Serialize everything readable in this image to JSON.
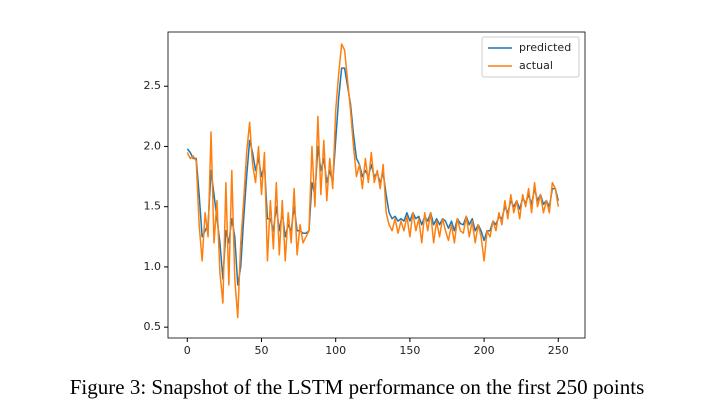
{
  "chart_data": {
    "type": "line",
    "caption": "Figure 3: Snapshot of the LSTM performance on the first 250 points",
    "x": [
      0,
      2,
      4,
      6,
      8,
      10,
      12,
      14,
      16,
      18,
      20,
      22,
      24,
      26,
      28,
      30,
      32,
      34,
      36,
      38,
      40,
      42,
      44,
      46,
      48,
      50,
      52,
      54,
      56,
      58,
      60,
      62,
      64,
      66,
      68,
      70,
      72,
      74,
      76,
      78,
      80,
      82,
      84,
      86,
      88,
      90,
      92,
      94,
      96,
      98,
      100,
      102,
      104,
      106,
      108,
      110,
      112,
      114,
      116,
      118,
      120,
      122,
      124,
      126,
      128,
      130,
      132,
      134,
      136,
      138,
      140,
      142,
      144,
      146,
      148,
      150,
      152,
      154,
      156,
      158,
      160,
      162,
      164,
      166,
      168,
      170,
      172,
      174,
      176,
      178,
      180,
      182,
      184,
      186,
      188,
      190,
      192,
      194,
      196,
      198,
      200,
      202,
      204,
      206,
      208,
      210,
      212,
      214,
      216,
      218,
      220,
      222,
      224,
      226,
      228,
      230,
      232,
      234,
      236,
      238,
      240,
      242,
      244,
      246,
      248,
      250
    ],
    "series": [
      {
        "name": "predicted",
        "color": "#1f77b4",
        "values": [
          1.98,
          1.95,
          1.9,
          1.9,
          1.6,
          1.25,
          1.3,
          1.35,
          1.8,
          1.6,
          1.4,
          1.2,
          0.9,
          1.3,
          1.2,
          1.4,
          1.25,
          0.85,
          1.0,
          1.4,
          1.75,
          2.05,
          1.95,
          1.8,
          1.9,
          1.75,
          1.85,
          1.4,
          1.4,
          1.3,
          1.5,
          1.3,
          1.45,
          1.25,
          1.35,
          1.3,
          1.5,
          1.3,
          1.3,
          1.28,
          1.28,
          1.3,
          1.7,
          1.6,
          2.0,
          1.8,
          1.9,
          1.7,
          1.8,
          1.7,
          2.05,
          2.4,
          2.65,
          2.65,
          2.5,
          2.35,
          2.1,
          1.9,
          1.85,
          1.75,
          1.8,
          1.75,
          1.85,
          1.75,
          1.78,
          1.7,
          1.78,
          1.6,
          1.45,
          1.4,
          1.42,
          1.38,
          1.4,
          1.38,
          1.45,
          1.38,
          1.45,
          1.4,
          1.42,
          1.35,
          1.42,
          1.38,
          1.45,
          1.35,
          1.4,
          1.35,
          1.4,
          1.38,
          1.32,
          1.38,
          1.3,
          1.4,
          1.36,
          1.35,
          1.42,
          1.35,
          1.4,
          1.3,
          1.35,
          1.3,
          1.22,
          1.3,
          1.3,
          1.38,
          1.35,
          1.42,
          1.4,
          1.5,
          1.45,
          1.55,
          1.5,
          1.55,
          1.48,
          1.57,
          1.53,
          1.6,
          1.52,
          1.65,
          1.55,
          1.6,
          1.52,
          1.55,
          1.5,
          1.65,
          1.65,
          1.55
        ]
      },
      {
        "name": "actual",
        "color": "#ff7f0e",
        "values": [
          1.95,
          1.9,
          1.92,
          1.88,
          1.35,
          1.05,
          1.45,
          1.25,
          2.12,
          1.2,
          1.55,
          0.95,
          0.7,
          1.7,
          0.85,
          1.8,
          0.9,
          0.58,
          1.2,
          1.55,
          1.95,
          2.2,
          1.85,
          1.7,
          2.0,
          1.6,
          1.95,
          1.05,
          1.55,
          1.15,
          1.7,
          1.1,
          1.55,
          1.05,
          1.45,
          1.2,
          1.65,
          1.1,
          1.35,
          1.2,
          1.25,
          1.3,
          2.0,
          1.5,
          2.25,
          1.6,
          2.05,
          1.55,
          1.9,
          1.65,
          2.3,
          2.6,
          2.85,
          2.8,
          2.55,
          2.3,
          2.0,
          1.75,
          1.85,
          1.65,
          1.9,
          1.7,
          1.95,
          1.7,
          1.8,
          1.65,
          1.85,
          1.45,
          1.35,
          1.3,
          1.4,
          1.28,
          1.38,
          1.3,
          1.42,
          1.25,
          1.45,
          1.3,
          1.4,
          1.2,
          1.45,
          1.3,
          1.45,
          1.2,
          1.38,
          1.25,
          1.4,
          1.3,
          1.22,
          1.35,
          1.2,
          1.4,
          1.3,
          1.28,
          1.42,
          1.25,
          1.38,
          1.2,
          1.35,
          1.25,
          1.05,
          1.3,
          1.25,
          1.38,
          1.3,
          1.45,
          1.35,
          1.55,
          1.4,
          1.6,
          1.45,
          1.55,
          1.4,
          1.6,
          1.5,
          1.65,
          1.45,
          1.7,
          1.5,
          1.6,
          1.45,
          1.55,
          1.45,
          1.7,
          1.65,
          1.5
        ]
      }
    ],
    "xlim": [
      -13,
      268
    ],
    "xticks": [
      0,
      50,
      100,
      150,
      200,
      250
    ],
    "ylim": [
      0.41,
      2.95
    ],
    "yticks": [
      0.5,
      {
        "value": 1,
        "label": "1.0"
      },
      1.5,
      {
        "value": 2,
        "label": "2.0"
      },
      2.5
    ],
    "legend": "upper right"
  }
}
